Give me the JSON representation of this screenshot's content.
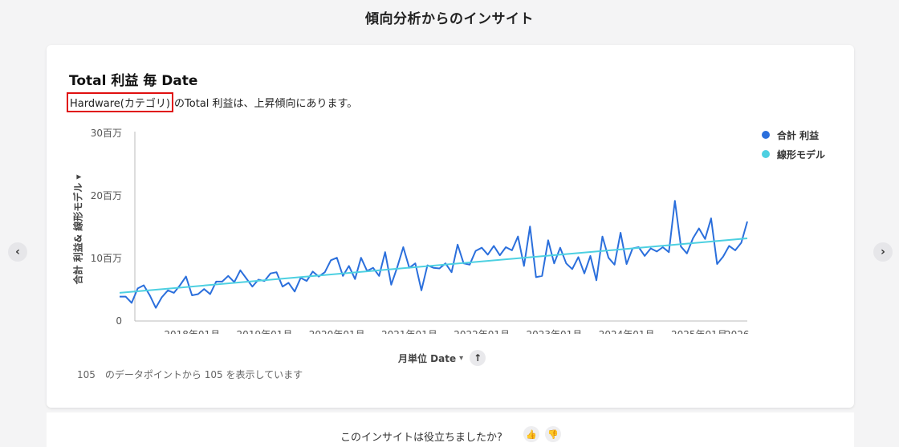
{
  "page": {
    "title": "傾向分析からのインサイト"
  },
  "card": {
    "title": "Total 利益 毎 Date",
    "insight_highlight": "Hardware(カテゴリ)",
    "insight_rest": " のTotal 利益は、上昇傾向にあります。",
    "y_axis_title": "合計 利益& 線形モデル",
    "y_axis_caret": "▾",
    "x_axis_title": "月単位 Date",
    "x_axis_caret": "▾",
    "sort_icon": "↑",
    "footnote": "105　のデータポイントから 105 を表示しています"
  },
  "nav": {
    "prev_icon": "‹",
    "next_icon": "›"
  },
  "feedback": {
    "question": "このインサイトは役立ちましたか?",
    "thumbs_up": "👍",
    "thumbs_down": "👎"
  },
  "chart_data": {
    "type": "line",
    "y_ticks": [
      {
        "value": 30,
        "label": "30百万"
      },
      {
        "value": 20,
        "label": "20百万"
      },
      {
        "value": 10,
        "label": "10百万"
      },
      {
        "value": 0,
        "label": "0"
      }
    ],
    "x_ticks": [
      {
        "index": 12,
        "label": "2018年01月"
      },
      {
        "index": 24,
        "label": "2019年01月"
      },
      {
        "index": 36,
        "label": "2020年01月"
      },
      {
        "index": 48,
        "label": "2021年01月"
      },
      {
        "index": 60,
        "label": "2022年01月"
      },
      {
        "index": 72,
        "label": "2023年01月"
      },
      {
        "index": 84,
        "label": "2024年01月"
      },
      {
        "index": 96,
        "label": "2025年01月"
      },
      {
        "index": 106,
        "label": "2026..."
      }
    ],
    "ylim": [
      0,
      30
    ],
    "unit": "百万",
    "x_points": 105,
    "legend_position": "top-right",
    "series": [
      {
        "name": "合計 利益",
        "color": "#2b6fdc",
        "values": [
          3.9,
          3.9,
          2.9,
          5.2,
          5.7,
          4.1,
          2.1,
          3.8,
          4.9,
          4.5,
          5.7,
          7.1,
          4.1,
          4.3,
          5.1,
          4.3,
          6.3,
          6.3,
          7.2,
          6.2,
          8.1,
          6.8,
          5.5,
          6.6,
          6.4,
          7.6,
          7.8,
          5.5,
          6.1,
          4.7,
          6.9,
          6.4,
          7.9,
          7.1,
          7.8,
          9.7,
          10.1,
          7.2,
          8.8,
          6.7,
          10.1,
          8.0,
          8.5,
          7.2,
          11.0,
          5.8,
          8.6,
          11.8,
          8.5,
          9.2,
          4.9,
          8.9,
          8.5,
          8.4,
          9.2,
          7.8,
          12.2,
          9.2,
          9.0,
          11.2,
          11.7,
          10.6,
          12.0,
          10.5,
          11.8,
          11.3,
          13.5,
          8.8,
          15.1,
          7.0,
          7.2,
          12.9,
          9.2,
          11.7,
          9.2,
          8.3,
          10.2,
          7.6,
          10.4,
          6.5,
          13.5,
          10.1,
          9.0,
          14.1,
          9.1,
          11.6,
          11.8,
          10.4,
          11.6,
          11.1,
          11.8,
          11.0,
          19.2,
          11.9,
          10.8,
          13.2,
          14.8,
          13.1,
          16.4,
          9.1,
          10.3,
          12.0,
          11.3,
          12.5,
          15.9
        ]
      },
      {
        "name": "線形モデル",
        "color": "#4dd0e1",
        "values_start": 4.5,
        "values_end": 13.2
      }
    ]
  }
}
